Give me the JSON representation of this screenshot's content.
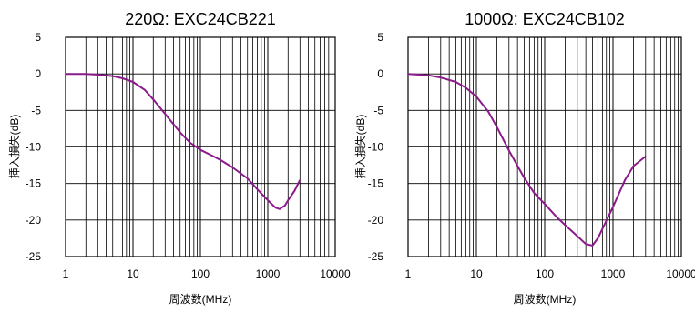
{
  "chart_data": [
    {
      "type": "line",
      "title": "220Ω: EXC24CB221",
      "xlabel": "周波数(MHz)",
      "ylabel": "挿入損失(dB)",
      "xscale": "log",
      "xlim": [
        1,
        10000
      ],
      "ylim": [
        -25,
        5
      ],
      "xticks": [
        "1",
        "10",
        "100",
        "1000",
        "10000"
      ],
      "yticks": [
        "5",
        "0",
        "-5",
        "-10",
        "-15",
        "-20",
        "-25"
      ],
      "grid": true,
      "series": [
        {
          "color": "#8b1a8b",
          "x": [
            1,
            2,
            3,
            5,
            7,
            10,
            15,
            20,
            30,
            50,
            70,
            100,
            150,
            200,
            300,
            500,
            700,
            1000,
            1300,
            1500,
            1800,
            2000,
            2500,
            3000
          ],
          "y": [
            0,
            0,
            -0.1,
            -0.3,
            -0.6,
            -1.1,
            -2.2,
            -3.5,
            -5.5,
            -8.0,
            -9.4,
            -10.4,
            -11.2,
            -11.8,
            -12.8,
            -14.3,
            -15.8,
            -17.3,
            -18.3,
            -18.5,
            -18.0,
            -17.3,
            -16.0,
            -14.5
          ]
        }
      ]
    },
    {
      "type": "line",
      "title": "1000Ω: EXC24CB102",
      "xlabel": "周波数(MHz)",
      "ylabel": "挿入損失(dB)",
      "xscale": "log",
      "xlim": [
        1,
        10000
      ],
      "ylim": [
        -25,
        5
      ],
      "xticks": [
        "1",
        "10",
        "100",
        "1000",
        "10000"
      ],
      "yticks": [
        "5",
        "0",
        "-5",
        "-10",
        "-15",
        "-20",
        "-25"
      ],
      "grid": true,
      "series": [
        {
          "color": "#8b1a8b",
          "x": [
            1,
            2,
            3,
            5,
            7,
            10,
            15,
            20,
            30,
            50,
            70,
            100,
            150,
            200,
            300,
            400,
            500,
            600,
            700,
            1000,
            1500,
            2000,
            3000
          ],
          "y": [
            0,
            -0.2,
            -0.5,
            -1.1,
            -1.9,
            -3.1,
            -5.2,
            -7.3,
            -10.5,
            -14.2,
            -16.3,
            -17.8,
            -19.6,
            -20.7,
            -22.2,
            -23.3,
            -23.5,
            -22.5,
            -21.2,
            -18.2,
            -14.5,
            -12.6,
            -11.3
          ]
        }
      ]
    }
  ]
}
